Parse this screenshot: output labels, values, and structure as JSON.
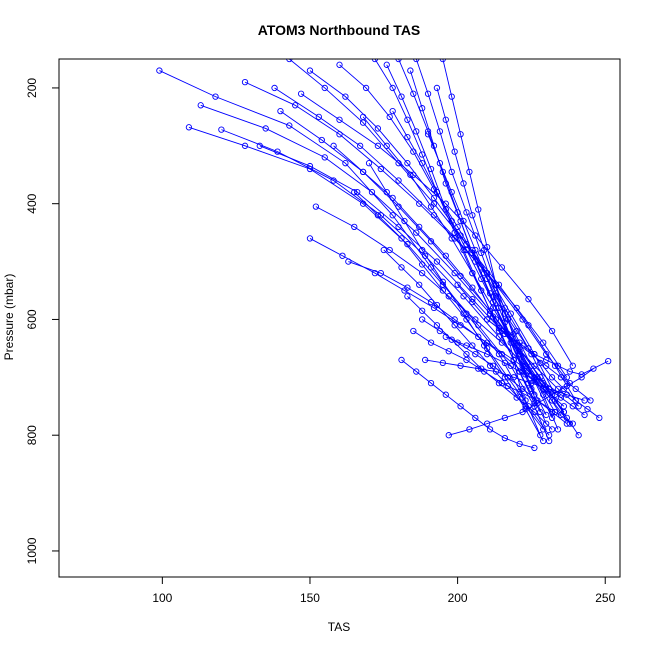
{
  "chart_data": {
    "type": "line",
    "title": "ATOM3 Northbound TAS",
    "xlabel": "TAS",
    "ylabel": "Pressure (mbar)",
    "xlim": [
      65,
      255
    ],
    "ylim": [
      1045,
      150
    ],
    "y_reversed": true,
    "x_ticks": [
      100,
      150,
      200,
      250
    ],
    "y_ticks": [
      200,
      400,
      600,
      800,
      1000
    ],
    "x_tick_labels": [
      "100",
      "150",
      "200",
      "250"
    ],
    "y_tick_labels": [
      "200",
      "400",
      "600",
      "800",
      "1000"
    ],
    "grid": false,
    "legend": "none",
    "series_color": "#0000ff",
    "marker": "open-circle",
    "series": [
      {
        "x": [
          99,
          118,
          143,
          162,
          178,
          191,
          203,
          214,
          223,
          228
        ],
        "y": [
          170,
          215,
          265,
          330,
          420,
          510,
          590,
          660,
          740,
          800
        ]
      },
      {
        "x": [
          109,
          128,
          150,
          168,
          183,
          195,
          207,
          218,
          226,
          231
        ],
        "y": [
          268,
          300,
          340,
          400,
          470,
          540,
          610,
          680,
          750,
          810
        ]
      },
      {
        "x": [
          113,
          135,
          155,
          171,
          186,
          199,
          211,
          221,
          229,
          234
        ],
        "y": [
          230,
          270,
          320,
          380,
          450,
          520,
          590,
          660,
          730,
          790
        ]
      },
      {
        "x": [
          120,
          139,
          158,
          174,
          189,
          202,
          214,
          224,
          232,
          238
        ],
        "y": [
          272,
          310,
          360,
          420,
          490,
          560,
          630,
          690,
          740,
          780
        ]
      },
      {
        "x": [
          133,
          150,
          166,
          180,
          193,
          205,
          216,
          226,
          234,
          241
        ],
        "y": [
          300,
          335,
          380,
          440,
          500,
          565,
          625,
          680,
          720,
          750
        ]
      },
      {
        "x": [
          143,
          155,
          168,
          180,
          192,
          203,
          214,
          224,
          233,
          240
        ],
        "y": [
          150,
          200,
          260,
          330,
          400,
          470,
          540,
          610,
          680,
          740
        ]
      },
      {
        "x": [
          140,
          154,
          168,
          180,
          191,
          201,
          211,
          220,
          228,
          236
        ],
        "y": [
          240,
          290,
          345,
          405,
          465,
          525,
          585,
          645,
          700,
          760
        ]
      },
      {
        "x": [
          150,
          162,
          173,
          183,
          192,
          201,
          210,
          218,
          226,
          233
        ],
        "y": [
          170,
          215,
          270,
          330,
          390,
          455,
          520,
          590,
          660,
          730
        ]
      },
      {
        "x": [
          160,
          169,
          177,
          185,
          192,
          200,
          208,
          216,
          224,
          231
        ],
        "y": [
          160,
          200,
          250,
          310,
          375,
          440,
          510,
          580,
          650,
          720
        ]
      },
      {
        "x": [
          152,
          165,
          177,
          188,
          197,
          206,
          215,
          223,
          230,
          236
        ],
        "y": [
          405,
          440,
          480,
          520,
          560,
          600,
          640,
          680,
          720,
          760
        ]
      },
      {
        "x": [
          150,
          161,
          172,
          182,
          192,
          201,
          210,
          219,
          227,
          235
        ],
        "y": [
          460,
          490,
          520,
          550,
          580,
          610,
          640,
          670,
          700,
          730
        ]
      },
      {
        "x": [
          163,
          174,
          183,
          191,
          199,
          207,
          215,
          222,
          229,
          236
        ],
        "y": [
          500,
          520,
          545,
          570,
          600,
          630,
          660,
          690,
          720,
          750
        ]
      },
      {
        "x": [
          172,
          178,
          183,
          188,
          193,
          199,
          205,
          212,
          219,
          226
        ],
        "y": [
          150,
          200,
          255,
          315,
          380,
          450,
          520,
          595,
          670,
          745
        ]
      },
      {
        "x": [
          176,
          181,
          186,
          191,
          196,
          202,
          208,
          214,
          221,
          228
        ],
        "y": [
          160,
          215,
          275,
          340,
          410,
          480,
          550,
          620,
          690,
          760
        ]
      },
      {
        "x": [
          180,
          185,
          190,
          195,
          200,
          205,
          211,
          217,
          223,
          230
        ],
        "y": [
          150,
          210,
          275,
          345,
          415,
          485,
          555,
          625,
          695,
          765
        ]
      },
      {
        "x": [
          186,
          190,
          194,
          198,
          203,
          208,
          213,
          219,
          225,
          232
        ],
        "y": [
          150,
          210,
          275,
          345,
          415,
          485,
          555,
          625,
          695,
          770
        ]
      },
      {
        "x": [
          184,
          188,
          192,
          196,
          201,
          206,
          212,
          218,
          224,
          230
        ],
        "y": [
          170,
          235,
          300,
          365,
          430,
          500,
          570,
          640,
          710,
          780
        ]
      },
      {
        "x": [
          168,
          176,
          184,
          191,
          198,
          205,
          212,
          219,
          226,
          233
        ],
        "y": [
          250,
          300,
          350,
          405,
          460,
          520,
          580,
          640,
          700,
          760
        ]
      },
      {
        "x": [
          158,
          168,
          178,
          187,
          196,
          205,
          213,
          221,
          228,
          235
        ],
        "y": [
          300,
          345,
          390,
          440,
          490,
          545,
          600,
          655,
          710,
          765
        ]
      },
      {
        "x": [
          170,
          176,
          182,
          188,
          195,
          202,
          209,
          216,
          223,
          229
        ],
        "y": [
          330,
          380,
          430,
          480,
          535,
          590,
          645,
          700,
          755,
          810
        ]
      },
      {
        "x": [
          165,
          173,
          181,
          188,
          195,
          203,
          210,
          217,
          224,
          231
        ],
        "y": [
          380,
          420,
          460,
          505,
          550,
          600,
          650,
          700,
          750,
          800
        ]
      },
      {
        "x": [
          175,
          181,
          187,
          193,
          199,
          205,
          211,
          217,
          223,
          229
        ],
        "y": [
          480,
          510,
          540,
          575,
          610,
          645,
          680,
          715,
          750,
          790
        ]
      },
      {
        "x": [
          183,
          188,
          193,
          198,
          203,
          208,
          214,
          220,
          226,
          232
        ],
        "y": [
          560,
          585,
          610,
          635,
          660,
          685,
          710,
          735,
          760,
          790
        ]
      },
      {
        "x": [
          188,
          194,
          200,
          206,
          212,
          217,
          222,
          227,
          232,
          237
        ],
        "y": [
          600,
          620,
          640,
          660,
          680,
          700,
          720,
          740,
          760,
          780
        ]
      },
      {
        "x": [
          196,
          203,
          210,
          216,
          221,
          226,
          231,
          235,
          239,
          243
        ],
        "y": [
          630,
          645,
          660,
          675,
          690,
          705,
          720,
          735,
          750,
          765
        ]
      },
      {
        "x": [
          197,
          204,
          210,
          216,
          222,
          227,
          232,
          237,
          242,
          246
        ],
        "y": [
          800,
          790,
          780,
          770,
          760,
          745,
          730,
          715,
          700,
          685
        ]
      },
      {
        "x": [
          190,
          194,
          198,
          202,
          206,
          210,
          214,
          218,
          222,
          226
        ],
        "y": [
          280,
          330,
          380,
          430,
          480,
          530,
          580,
          630,
          680,
          730
        ]
      },
      {
        "x": [
          193,
          196,
          199,
          202,
          205,
          209,
          213,
          217,
          221,
          225
        ],
        "y": [
          200,
          255,
          310,
          365,
          420,
          480,
          540,
          600,
          660,
          720
        ]
      },
      {
        "x": [
          195,
          198,
          201,
          204,
          207,
          210,
          213,
          216,
          219,
          222
        ],
        "y": [
          150,
          215,
          280,
          345,
          410,
          475,
          540,
          605,
          670,
          735
        ]
      },
      {
        "x": [
          178,
          183,
          188,
          193,
          198,
          203,
          208,
          213,
          218,
          223
        ],
        "y": [
          240,
          285,
          330,
          380,
          430,
          480,
          530,
          580,
          630,
          680
        ]
      },
      {
        "x": [
          128,
          145,
          160,
          174,
          187,
          199,
          210,
          220,
          229,
          237
        ],
        "y": [
          190,
          230,
          280,
          340,
          400,
          460,
          520,
          580,
          640,
          700
        ]
      },
      {
        "x": [
          138,
          153,
          167,
          180,
          192,
          203,
          213,
          222,
          230,
          238
        ],
        "y": [
          200,
          250,
          300,
          360,
          420,
          480,
          540,
          600,
          660,
          710
        ]
      },
      {
        "x": [
          147,
          160,
          173,
          185,
          196,
          206,
          215,
          224,
          232,
          239
        ],
        "y": [
          210,
          255,
          300,
          350,
          400,
          455,
          510,
          565,
          620,
          680
        ]
      },
      {
        "x": [
          185,
          191,
          197,
          203,
          209,
          215,
          221,
          227,
          233,
          239
        ],
        "y": [
          620,
          640,
          655,
          670,
          690,
          710,
          725,
          740,
          760,
          780
        ]
      },
      {
        "x": [
          200,
          205,
          210,
          215,
          220,
          225,
          230,
          235,
          240,
          245
        ],
        "y": [
          540,
          570,
          600,
          620,
          640,
          660,
          680,
          700,
          720,
          740
        ]
      },
      {
        "x": [
          205,
          209,
          213,
          217,
          221,
          225,
          229,
          233,
          237,
          241
        ],
        "y": [
          480,
          520,
          560,
          600,
          640,
          680,
          710,
          740,
          770,
          800
        ]
      },
      {
        "x": [
          212,
          216,
          220,
          224,
          228,
          232,
          236,
          240,
          244,
          248
        ],
        "y": [
          560,
          590,
          620,
          650,
          675,
          700,
          720,
          740,
          755,
          770
        ]
      },
      {
        "x": [
          210,
          214,
          218,
          222,
          226,
          230,
          234,
          238,
          242,
          251
        ],
        "y": [
          600,
          615,
          630,
          645,
          660,
          670,
          680,
          690,
          695,
          672
        ]
      },
      {
        "x": [
          181,
          186,
          191,
          196,
          201,
          206,
          211,
          216,
          221,
          226
        ],
        "y": [
          670,
          690,
          710,
          730,
          750,
          770,
          790,
          805,
          815,
          822
        ]
      },
      {
        "x": [
          189,
          195,
          201,
          207,
          213,
          219,
          225,
          231,
          237,
          243
        ],
        "y": [
          670,
          675,
          680,
          685,
          690,
          700,
          710,
          720,
          730,
          740
        ]
      }
    ]
  }
}
